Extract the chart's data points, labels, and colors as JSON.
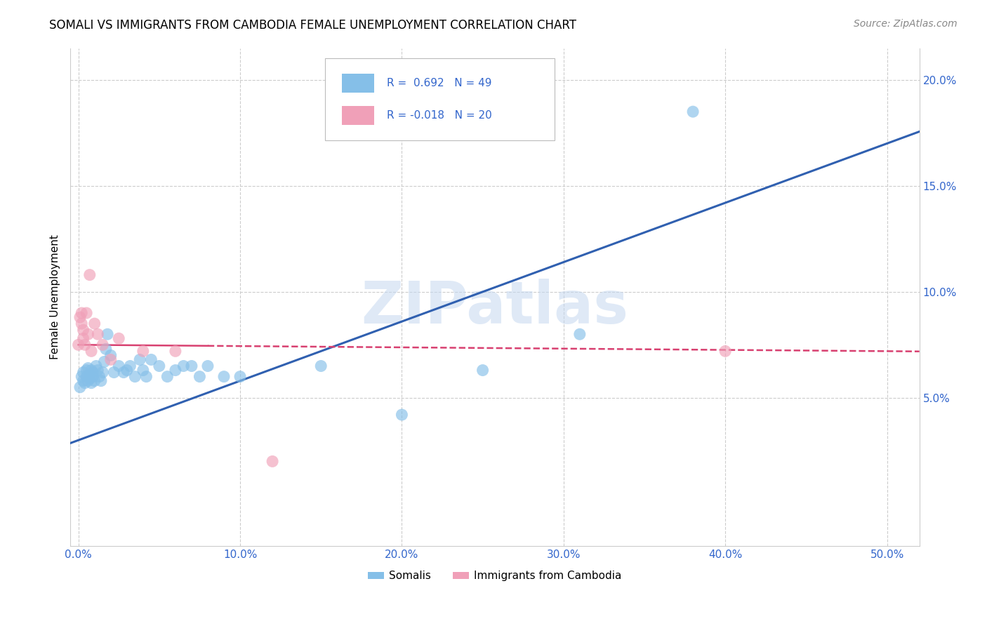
{
  "title": "SOMALI VS IMMIGRANTS FROM CAMBODIA FEMALE UNEMPLOYMENT CORRELATION CHART",
  "source": "Source: ZipAtlas.com",
  "xlabel_ticks": [
    0.0,
    0.1,
    0.2,
    0.3,
    0.4,
    0.5
  ],
  "xlabel_tick_labels": [
    "0.0%",
    "10.0%",
    "20.0%",
    "30.0%",
    "40.0%",
    "50.0%"
  ],
  "ylabel_ticks": [
    0.05,
    0.1,
    0.15,
    0.2
  ],
  "ylabel_tick_labels": [
    "5.0%",
    "10.0%",
    "15.0%",
    "20.0%"
  ],
  "xlim": [
    -0.005,
    0.52
  ],
  "ylim": [
    -0.02,
    0.215
  ],
  "somali_R": 0.692,
  "somali_N": 49,
  "cambodia_R": -0.018,
  "cambodia_N": 20,
  "somali_color": "#85bfe8",
  "cambodia_color": "#f0a0b8",
  "somali_line_color": "#3060b0",
  "cambodia_line_color": "#d84070",
  "watermark_text": "ZIPatlas",
  "legend_label_somali": "R =  0.692   N = 49",
  "legend_label_cambodia": "R = -0.018   N = 20",
  "bottom_legend_somali": "Somalis",
  "bottom_legend_cambodia": "Immigrants from Cambodia",
  "somali_x": [
    0.001,
    0.002,
    0.003,
    0.003,
    0.004,
    0.005,
    0.005,
    0.006,
    0.006,
    0.007,
    0.007,
    0.008,
    0.008,
    0.009,
    0.009,
    0.01,
    0.011,
    0.012,
    0.013,
    0.014,
    0.015,
    0.016,
    0.017,
    0.018,
    0.02,
    0.022,
    0.025,
    0.028,
    0.03,
    0.032,
    0.035,
    0.038,
    0.04,
    0.042,
    0.045,
    0.05,
    0.055,
    0.06,
    0.065,
    0.07,
    0.075,
    0.08,
    0.09,
    0.1,
    0.15,
    0.2,
    0.25,
    0.31,
    0.38
  ],
  "somali_y": [
    0.055,
    0.06,
    0.062,
    0.058,
    0.057,
    0.06,
    0.063,
    0.058,
    0.064,
    0.061,
    0.059,
    0.063,
    0.057,
    0.062,
    0.06,
    0.058,
    0.065,
    0.063,
    0.06,
    0.058,
    0.062,
    0.067,
    0.073,
    0.08,
    0.07,
    0.062,
    0.065,
    0.062,
    0.063,
    0.065,
    0.06,
    0.068,
    0.063,
    0.06,
    0.068,
    0.065,
    0.06,
    0.063,
    0.065,
    0.065,
    0.06,
    0.065,
    0.06,
    0.06,
    0.065,
    0.042,
    0.063,
    0.08,
    0.185
  ],
  "cambodia_x": [
    0.0,
    0.001,
    0.002,
    0.002,
    0.003,
    0.003,
    0.004,
    0.005,
    0.006,
    0.007,
    0.008,
    0.01,
    0.012,
    0.015,
    0.02,
    0.025,
    0.04,
    0.06,
    0.12,
    0.4
  ],
  "cambodia_y": [
    0.075,
    0.088,
    0.09,
    0.085,
    0.082,
    0.078,
    0.075,
    0.09,
    0.08,
    0.108,
    0.072,
    0.085,
    0.08,
    0.075,
    0.068,
    0.078,
    0.072,
    0.072,
    0.02,
    0.072
  ],
  "somali_line_x0": 0.0,
  "somali_line_y0": 0.03,
  "somali_line_x1": 0.5,
  "somali_line_y1": 0.17,
  "cambodia_line_x0": 0.0,
  "cambodia_line_y0": 0.075,
  "cambodia_line_x1": 0.5,
  "cambodia_line_y1": 0.072
}
